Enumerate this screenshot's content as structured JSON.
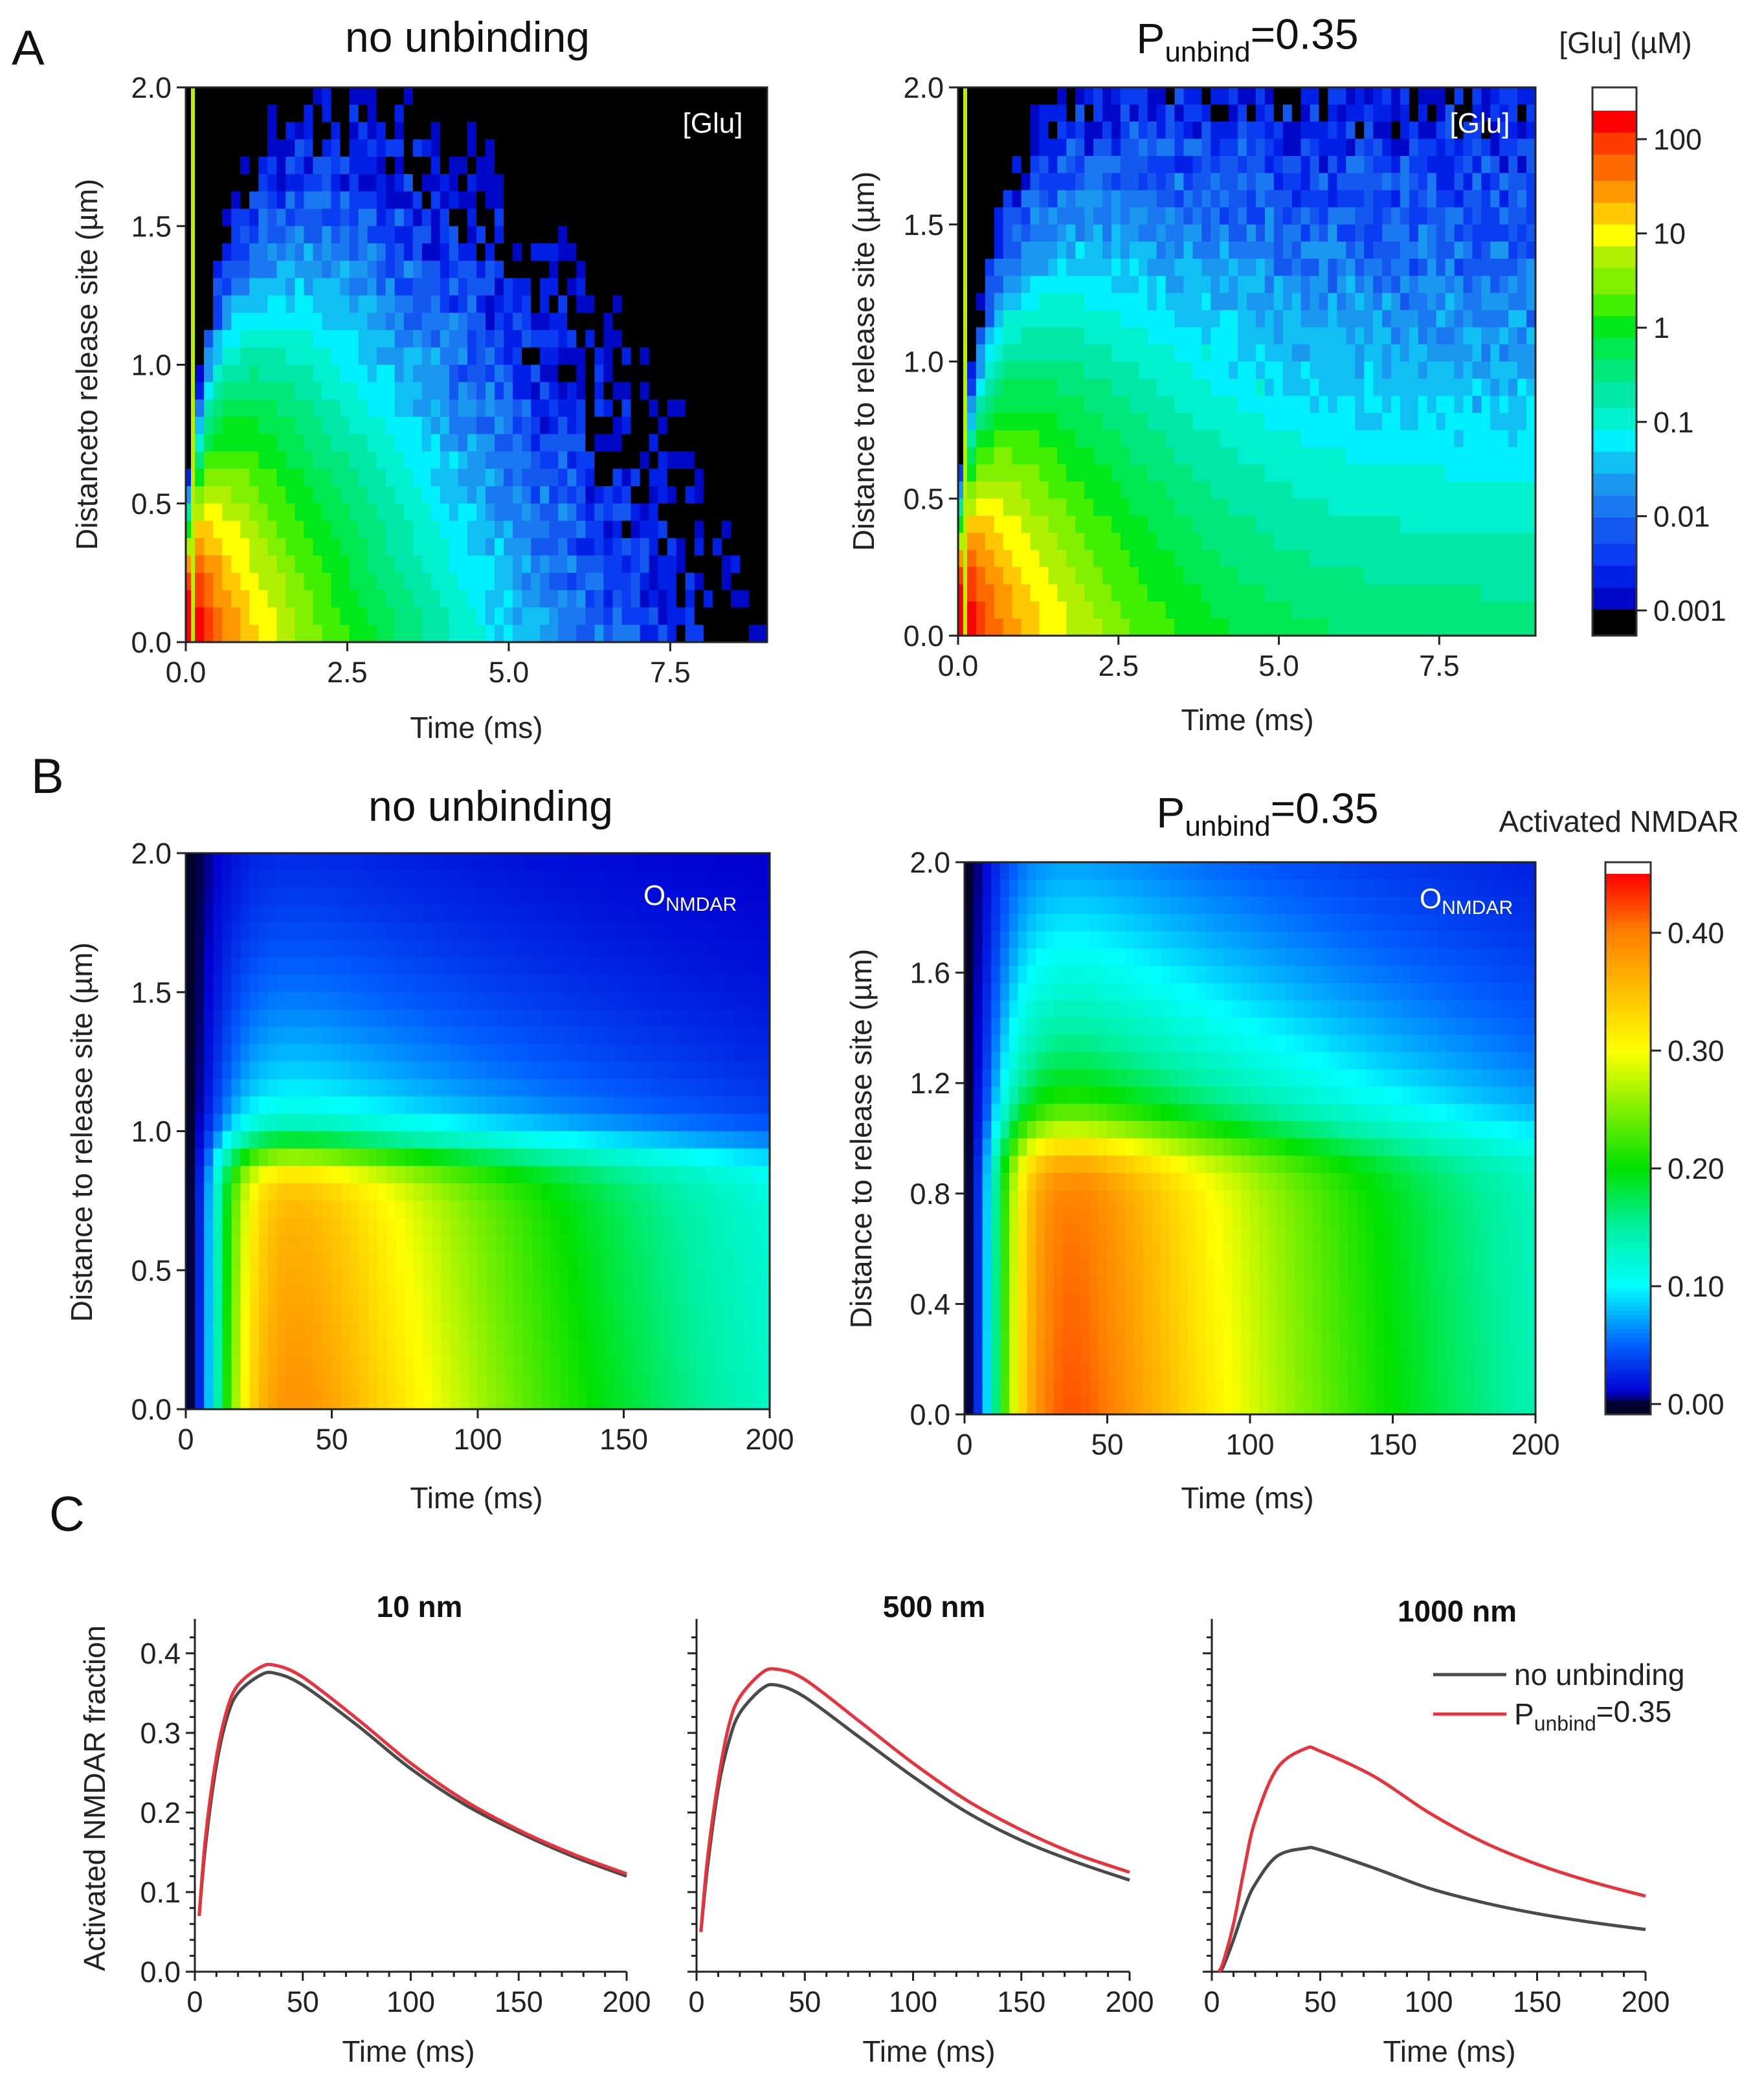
{
  "panels": {
    "A": "A",
    "B": "B",
    "C": "C"
  },
  "colorbars": {
    "glu": {
      "title": "[Glu] (µM)",
      "scale": "log",
      "ticks": [
        0.001,
        0.01,
        0.1,
        1,
        10,
        100
      ],
      "labels": [
        "0.001",
        "0.01",
        "0.1",
        "1",
        "10",
        "100"
      ],
      "range": [
        0.0005,
        200
      ]
    },
    "nmdar": {
      "title": "Activated NMDAR",
      "scale": "linear",
      "ticks": [
        0,
        0.1,
        0.2,
        0.3,
        0.4
      ],
      "labels": [
        "0.00",
        "0.10",
        "0.20",
        "0.30",
        "0.40"
      ],
      "range": [
        0,
        0.45
      ]
    }
  },
  "chart_data": [
    {
      "id": "A-left",
      "type": "heatmap",
      "title": {
        "main": "no unbinding"
      },
      "annotation": {
        "main": "[Glu]"
      },
      "colorbar": "glu",
      "xlabel": "Time (ms)",
      "ylabel": "Distanceto release site  (µm)",
      "xlim": [
        0,
        9
      ],
      "ylim": [
        0,
        2
      ],
      "xticks": [
        0,
        2.5,
        5,
        7.5
      ],
      "xtick_labels": [
        "0.0",
        "2.5",
        "5.0",
        "7.5"
      ],
      "yticks": [
        0,
        0.5,
        1,
        1.5,
        2
      ],
      "ytick_labels": [
        "0.0",
        "0.5",
        "1.0",
        "1.5",
        "2.0"
      ]
    },
    {
      "id": "A-right",
      "type": "heatmap",
      "title": {
        "main": "P",
        "sub": "unbind",
        "rest": "=0.35"
      },
      "annotation": {
        "main": "[Glu]"
      },
      "colorbar": "glu",
      "xlabel": "Time (ms)",
      "ylabel": "Distance to release site  (µm)",
      "xlim": [
        0,
        9
      ],
      "ylim": [
        0,
        2
      ],
      "xticks": [
        0,
        2.5,
        5,
        7.5
      ],
      "xtick_labels": [
        "0.0",
        "2.5",
        "5.0",
        "7.5"
      ],
      "yticks": [
        0,
        0.5,
        1,
        1.5,
        2
      ],
      "ytick_labels": [
        "0.0",
        "0.5",
        "1.0",
        "1.5",
        "2.0"
      ]
    },
    {
      "id": "B-left",
      "type": "heatmap",
      "title": {
        "main": "no unbinding"
      },
      "annotation": {
        "main": "O",
        "sub": "NMDAR"
      },
      "colorbar": "nmdar",
      "xlabel": "Time (ms)",
      "ylabel": "Distance to release site (µm)",
      "xlim": [
        0,
        200
      ],
      "ylim": [
        0,
        2
      ],
      "xticks": [
        0,
        50,
        100,
        150,
        200
      ],
      "xtick_labels": [
        "0",
        "50",
        "100",
        "150",
        "200"
      ],
      "yticks": [
        0,
        0.5,
        1,
        1.5,
        2
      ],
      "ytick_labels": [
        "0.0",
        "0.5",
        "1.0",
        "1.5",
        "2.0"
      ]
    },
    {
      "id": "B-right",
      "type": "heatmap",
      "title": {
        "main": "P",
        "sub": "unbind",
        "rest": "=0.35"
      },
      "annotation": {
        "main": "O",
        "sub": "NMDAR"
      },
      "colorbar": "nmdar",
      "xlabel": "Time (ms)",
      "ylabel": "Distance to release site (µm)",
      "xlim": [
        0,
        200
      ],
      "ylim": [
        0,
        2
      ],
      "xticks": [
        0,
        50,
        100,
        150,
        200
      ],
      "xtick_labels": [
        "0",
        "50",
        "100",
        "150",
        "200"
      ],
      "yticks": [
        0,
        0.4,
        0.8,
        1.2,
        1.6,
        2
      ],
      "ytick_labels": [
        "0.0",
        "0.4",
        "0.8",
        "1.2",
        "1.6",
        "2.0"
      ]
    },
    {
      "id": "C1",
      "type": "line",
      "title": "10 nm",
      "xlabel": "Time (ms)",
      "ylabel": "Activated NMDAR fraction",
      "xlim": [
        0,
        200
      ],
      "ylim": [
        0,
        0.435
      ],
      "xticks": [
        0,
        50,
        100,
        150,
        200
      ],
      "yticks": [
        0,
        0.1,
        0.2,
        0.3,
        0.4
      ],
      "ytick_labels": [
        "0.0",
        "0.1",
        "0.2",
        "0.3",
        "0.4"
      ],
      "x": [
        2,
        5,
        10,
        15,
        20,
        30,
        37,
        50,
        75,
        100,
        125,
        150,
        175,
        200
      ],
      "series": [
        {
          "name": "no unbinding",
          "color": "#4a4a4a",
          "values": [
            0.07,
            0.16,
            0.26,
            0.32,
            0.35,
            0.372,
            0.375,
            0.36,
            0.31,
            0.255,
            0.21,
            0.175,
            0.145,
            0.12
          ]
        },
        {
          "name": "P_unbind=0.35",
          "color": "#e8333c",
          "values": [
            0.07,
            0.17,
            0.27,
            0.33,
            0.36,
            0.382,
            0.385,
            0.37,
            0.318,
            0.262,
            0.215,
            0.178,
            0.148,
            0.123
          ]
        }
      ]
    },
    {
      "id": "C2",
      "type": "line",
      "title": "500 nm",
      "xlabel": "Time (ms)",
      "ylabel": "",
      "xlim": [
        0,
        200
      ],
      "ylim": [
        0,
        0.435
      ],
      "xticks": [
        0,
        50,
        100,
        150,
        200
      ],
      "yticks": [
        0,
        0.1,
        0.2,
        0.3,
        0.4
      ],
      "ytick_labels": [],
      "x": [
        2,
        5,
        10,
        15,
        20,
        30,
        37,
        50,
        75,
        100,
        125,
        150,
        175,
        200
      ],
      "series": [
        {
          "name": "no unbinding",
          "color": "#4a4a4a",
          "values": [
            0.05,
            0.13,
            0.23,
            0.29,
            0.325,
            0.355,
            0.36,
            0.345,
            0.295,
            0.245,
            0.2,
            0.165,
            0.138,
            0.115
          ]
        },
        {
          "name": "P_unbind=0.35",
          "color": "#e8333c",
          "values": [
            0.05,
            0.14,
            0.24,
            0.31,
            0.345,
            0.375,
            0.38,
            0.367,
            0.315,
            0.262,
            0.215,
            0.178,
            0.148,
            0.125
          ]
        }
      ]
    },
    {
      "id": "C3",
      "type": "line",
      "title": "1000 nm",
      "xlabel": "Time (ms)",
      "ylabel": "",
      "xlim": [
        0,
        200
      ],
      "ylim": [
        0,
        0.435
      ],
      "xticks": [
        0,
        50,
        100,
        150,
        200
      ],
      "yticks": [
        0,
        0.1,
        0.2,
        0.3,
        0.4
      ],
      "ytick_labels": [],
      "x": [
        3,
        5,
        10,
        15,
        20,
        30,
        43,
        50,
        75,
        100,
        125,
        150,
        175,
        200
      ],
      "series": [
        {
          "name": "no unbinding",
          "color": "#4a4a4a",
          "values": [
            0,
            0.005,
            0.04,
            0.08,
            0.11,
            0.145,
            0.155,
            0.153,
            0.13,
            0.105,
            0.087,
            0.073,
            0.062,
            0.053
          ]
        },
        {
          "name": "P_unbind=0.35",
          "color": "#e8333c",
          "values": [
            0,
            0.01,
            0.06,
            0.13,
            0.19,
            0.255,
            0.28,
            0.277,
            0.245,
            0.2,
            0.163,
            0.135,
            0.113,
            0.095
          ]
        }
      ],
      "legend": {
        "placement": "top-right",
        "entries": [
          {
            "main": "no unbinding"
          },
          {
            "main": "P",
            "sub": "unbind",
            "rest": "=0.35"
          }
        ]
      }
    }
  ]
}
